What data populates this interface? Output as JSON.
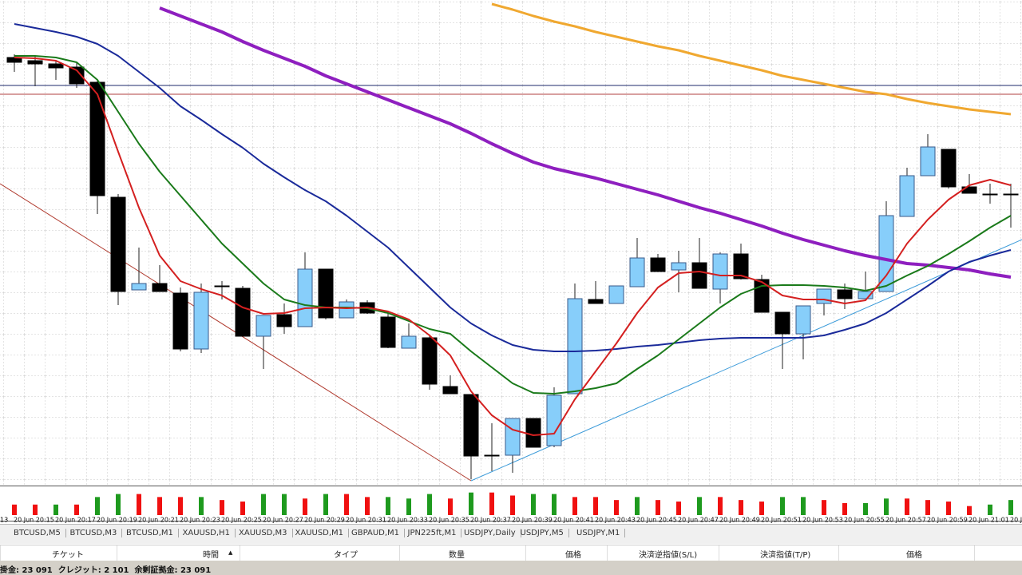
{
  "chart_data": {
    "type": "candlestick",
    "left_cut_label": "13",
    "categories": [
      "20 Jun 20:15",
      null,
      "20 Jun 20:17",
      null,
      "20 Jun 20:19",
      null,
      "20 Jun 20:21",
      null,
      "20 Jun 20:23",
      null,
      "20 Jun 20:25",
      null,
      "20 Jun 20:27",
      null,
      "20 Jun 20:29",
      null,
      "20 Jun 20:31",
      null,
      "20 Jun 20:33",
      null,
      "20 Jun 20:35",
      null,
      "20 Jun 20:37",
      null,
      "20 Jun 20:39",
      null,
      "20 Jun 20:41",
      null,
      "20 Jun 20:43",
      null,
      "20 Jun 20:45",
      null,
      "20 Jun 20:47",
      null,
      "20 Jun 20:49",
      null,
      "20 Jun 20:51",
      null,
      "20 Jun 20:53",
      null,
      "20 Jun 20:55",
      null,
      "20 Jun 20:57",
      null,
      "20 Jun 20:59",
      null,
      "20 Jun 21:01",
      null,
      "20 Ju"
    ],
    "open": [
      538,
      534,
      530,
      526,
      507,
      363,
      247,
      255,
      243,
      173,
      252,
      249,
      189,
      216,
      201,
      273,
      212,
      231,
      213,
      174,
      187,
      126,
      116,
      40,
      40,
      86,
      52,
      117,
      235,
      230,
      251,
      287,
      272,
      281,
      248,
      292,
      260,
      219,
      192,
      230,
      247,
      236,
      245,
      339,
      390,
      423,
      376,
      367,
      367
    ],
    "high": [
      542,
      540,
      535,
      532,
      510,
      367,
      300,
      278,
      250,
      255,
      258,
      252,
      215,
      230,
      294,
      273,
      235,
      234,
      220,
      205,
      190,
      140,
      116,
      80,
      86,
      86,
      125,
      255,
      258,
      252,
      312,
      292,
      296,
      312,
      294,
      305,
      266,
      219,
      227,
      248,
      255,
      270,
      358,
      400,
      442,
      423,
      392,
      380,
      380
    ],
    "low": [
      520,
      502,
      510,
      500,
      342,
      228,
      247,
      245,
      170,
      168,
      235,
      189,
      148,
      192,
      201,
      210,
      212,
      217,
      174,
      174,
      122,
      117,
      10,
      20,
      18,
      50,
      50,
      117,
      230,
      230,
      251,
      270,
      244,
      249,
      230,
      260,
      219,
      148,
      160,
      215,
      223,
      235,
      245,
      339,
      390,
      374,
      368,
      355,
      325
    ],
    "close": [
      532,
      530,
      525,
      505,
      365,
      245,
      255,
      245,
      173,
      244,
      251,
      189,
      215,
      201,
      273,
      212,
      232,
      218,
      175,
      189,
      129,
      117,
      39,
      39,
      86,
      50,
      115,
      236,
      230,
      252,
      287,
      270,
      281,
      249,
      292,
      261,
      219,
      192,
      227,
      248,
      236,
      245,
      340,
      390,
      426,
      376,
      368,
      367,
      367
    ],
    "up_color": "#87cefa",
    "down_color": "#000000",
    "ylim": [
      0,
      610
    ],
    "grid": true,
    "lines": [
      {
        "color": "#8e1fbf",
        "width": 4,
        "values": [
          null,
          null,
          null,
          null,
          null,
          null,
          null,
          600,
          590,
          580,
          570,
          558,
          547,
          537,
          527,
          515,
          505,
          495,
          485,
          475,
          465,
          455,
          443,
          430,
          418,
          407,
          399,
          393,
          387,
          380,
          373,
          366,
          358,
          350,
          343,
          335,
          327,
          318,
          310,
          303,
          296,
          290,
          285,
          280,
          278,
          275,
          272,
          267,
          263
        ]
      },
      {
        "color": "#f0a830",
        "width": 3,
        "values": [
          null,
          null,
          null,
          null,
          null,
          null,
          null,
          null,
          null,
          null,
          null,
          null,
          null,
          null,
          null,
          null,
          null,
          null,
          null,
          null,
          null,
          null,
          null,
          605,
          598,
          590,
          583,
          577,
          570,
          564,
          558,
          552,
          547,
          540,
          534,
          528,
          522,
          515,
          510,
          505,
          500,
          495,
          492,
          486,
          481,
          477,
          473,
          470,
          467
        ]
      },
      {
        "color": "#1a2a9a",
        "width": 2,
        "values": [
          580,
          575,
          570,
          564,
          555,
          540,
          520,
          500,
          477,
          460,
          442,
          425,
          405,
          388,
          372,
          358,
          340,
          320,
          300,
          275,
          250,
          225,
          205,
          190,
          178,
          172,
          170,
          170,
          171,
          173,
          176,
          178,
          181,
          184,
          186,
          187,
          187,
          187,
          187,
          190,
          197,
          205,
          218,
          235,
          252,
          270,
          282,
          290,
          297
        ]
      },
      {
        "color": "#1a7a1a",
        "width": 2,
        "values": [
          540,
          540,
          538,
          532,
          510,
          470,
          430,
          395,
          365,
          335,
          305,
          280,
          255,
          235,
          228,
          225,
          225,
          224,
          218,
          208,
          198,
          192,
          170,
          150,
          130,
          118,
          117,
          120,
          124,
          130,
          148,
          165,
          185,
          205,
          225,
          242,
          252,
          253,
          253,
          252,
          250,
          246,
          252,
          265,
          277,
          292,
          308,
          325,
          340
        ]
      },
      {
        "color": "#d42020",
        "width": 2,
        "values": [
          538,
          537,
          534,
          522,
          492,
          420,
          350,
          290,
          258,
          248,
          240,
          225,
          217,
          218,
          224,
          225,
          224,
          225,
          220,
          210,
          190,
          165,
          120,
          90,
          72,
          65,
          67,
          110,
          145,
          180,
          218,
          250,
          268,
          270,
          265,
          265,
          257,
          240,
          235,
          235,
          230,
          234,
          265,
          305,
          335,
          360,
          378,
          385,
          378
        ]
      }
    ],
    "hlines": [
      {
        "value": 503,
        "color": "#1c2a6b"
      },
      {
        "value": 492,
        "color": "#b04040"
      }
    ],
    "volume": {
      "ylim": [
        0,
        35
      ],
      "values": [
        14,
        14,
        14,
        14,
        24,
        28,
        28,
        24,
        24,
        24,
        20,
        18,
        28,
        28,
        22,
        28,
        28,
        24,
        24,
        22,
        28,
        22,
        30,
        30,
        26,
        28,
        28,
        24,
        24,
        20,
        24,
        20,
        18,
        24,
        24,
        20,
        18,
        24,
        24,
        20,
        16,
        16,
        22,
        22,
        20,
        18,
        12,
        14,
        20
      ],
      "colors": [
        "#f01010",
        "#f01010",
        "#1e9a1e",
        "#f01010",
        "#1e9a1e",
        "#1e9a1e",
        "#f01010",
        "#f01010",
        "#f01010",
        "#1e9a1e",
        "#f01010",
        "#f01010",
        "#1e9a1e",
        "#1e9a1e",
        "#f01010",
        "#1e9a1e",
        "#f01010",
        "#f01010",
        "#1e9a1e",
        "#1e9a1e",
        "#1e9a1e",
        "#f01010",
        "#1e9a1e",
        "#f01010",
        "#f01010",
        "#1e9a1e",
        "#1e9a1e",
        "#f01010",
        "#f01010",
        "#f01010",
        "#1e9a1e",
        "#f01010",
        "#f01010",
        "#1e9a1e",
        "#f01010",
        "#f01010",
        "#f01010",
        "#1e9a1e",
        "#1e9a1e",
        "#f01010",
        "#f01010",
        "#1e9a1e",
        "#1e9a1e",
        "#f01010",
        "#f01010",
        "#f01010",
        "#f01010",
        "#1e9a1e",
        "#1e9a1e"
      ]
    }
  },
  "tabs": [
    "BTCUSD,M5",
    "BTCUSD,M3",
    "BTCUSD,M1",
    "XAUUSD,H1",
    "XAUUSD,M3",
    "XAUUSD,M1",
    "GBPAUD,M1",
    "JPN225ft,M1",
    "USDJPY,Daily",
    "USDJPY,M5",
    "USDJPY,M1"
  ],
  "table_headers": [
    "チケット",
    "時間",
    "タイプ",
    "数量",
    "価格",
    "決済逆指値(S/L)",
    "決済指値(T/P)",
    "価格"
  ],
  "status": "掛金: 23 091  クレジット: 2 101  余剰証拠金: 23 091"
}
